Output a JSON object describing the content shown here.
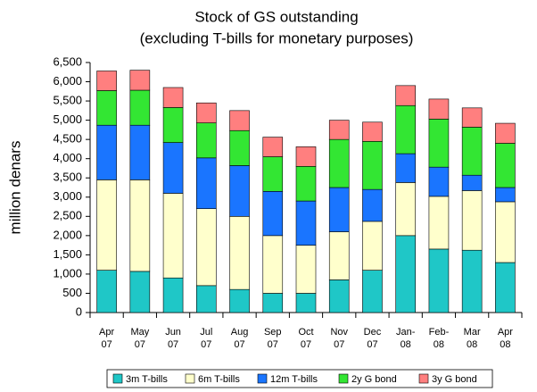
{
  "chart_data": {
    "type": "stacked_bar",
    "title": "Stock of GS outstanding",
    "subtitle": "(excluding T-bills for monetary purposes)",
    "y_label": "million denars",
    "categories": [
      [
        "Apr",
        "07"
      ],
      [
        "May",
        "07"
      ],
      [
        "Jun",
        "07"
      ],
      [
        "Jul",
        "07"
      ],
      [
        "Aug",
        "07"
      ],
      [
        "Sep",
        "07"
      ],
      [
        "Oct",
        "07"
      ],
      [
        "Nov",
        "07"
      ],
      [
        "Dec",
        "07"
      ],
      [
        "Jan-",
        "08"
      ],
      [
        "Feb-",
        "08"
      ],
      [
        "Mar",
        "08"
      ],
      [
        "Apr",
        "08"
      ]
    ],
    "series": [
      {
        "name": "3m T-bills",
        "color": "#1fc7c7",
        "values": [
          1100,
          1070,
          900,
          700,
          600,
          500,
          500,
          850,
          1100,
          2000,
          1650,
          1620,
          1300
        ]
      },
      {
        "name": "6m T-bills",
        "color": "#ffffcc",
        "values": [
          2350,
          2380,
          2200,
          2000,
          1900,
          1500,
          1250,
          1250,
          1270,
          1380,
          1370,
          1550,
          1580
        ]
      },
      {
        "name": "12m T-bills",
        "color": "#1a75ff",
        "values": [
          1420,
          1420,
          1320,
          1320,
          1320,
          1150,
          1150,
          1150,
          830,
          750,
          760,
          400,
          370
        ]
      },
      {
        "name": "2y G bond",
        "color": "#33e633",
        "values": [
          900,
          910,
          910,
          910,
          910,
          900,
          900,
          1250,
          1250,
          1250,
          1250,
          1250,
          1150
        ]
      },
      {
        "name": "3y G bond",
        "color": "#ff7f7f",
        "values": [
          510,
          520,
          520,
          520,
          520,
          510,
          510,
          500,
          500,
          520,
          520,
          500,
          520
        ]
      }
    ],
    "ylim": [
      0,
      6500
    ],
    "yticks": [
      0,
      {
        "value": 500,
        "label": "500"
      },
      {
        "value": 1000,
        "label": "1,000"
      },
      {
        "value": 1500,
        "label": "1,500"
      },
      {
        "value": 2000,
        "label": "2,000"
      },
      {
        "value": 2500,
        "label": "2,500"
      },
      {
        "value": 3000,
        "label": "3,000"
      },
      {
        "value": 3500,
        "label": "3,500"
      },
      {
        "value": 4000,
        "label": "4,000"
      },
      {
        "value": 4500,
        "label": "4,500"
      },
      {
        "value": 5000,
        "label": "5,000"
      },
      {
        "value": 5500,
        "label": "5,500"
      },
      {
        "value": 6000,
        "label": "6,000"
      },
      {
        "value": 6500,
        "label": "6,500"
      }
    ],
    "grid": false,
    "legend": "bottom"
  }
}
